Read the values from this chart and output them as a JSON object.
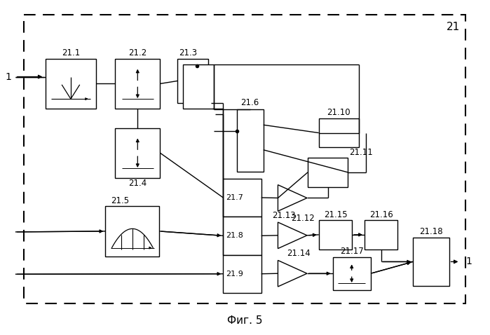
{
  "title": "Фиг. 5",
  "bg_color": "#ffffff",
  "line_color": "#000000",
  "figsize": [
    6.99,
    4.78
  ],
  "dpi": 100
}
